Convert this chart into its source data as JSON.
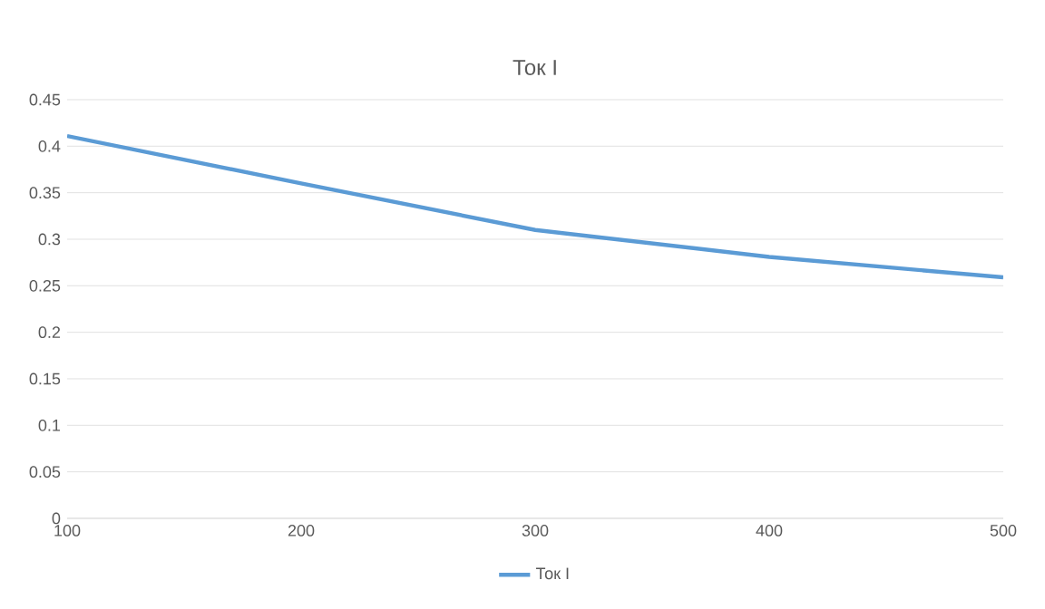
{
  "chart_data": {
    "type": "line",
    "title": "Ток I",
    "x": [
      100,
      200,
      300,
      400,
      500
    ],
    "series": [
      {
        "name": "Ток I",
        "color": "#5b9bd5",
        "values": [
          0.411,
          0.36,
          0.31,
          0.281,
          0.259
        ]
      }
    ],
    "xlim": [
      100,
      500
    ],
    "xticks": [
      100,
      200,
      300,
      400,
      500
    ],
    "ylim": [
      0,
      0.45
    ],
    "yticks": [
      0,
      0.05,
      0.1,
      0.15,
      0.2,
      0.25,
      0.3,
      0.35,
      0.4,
      0.45
    ],
    "grid": "y",
    "legend": "bottom",
    "marker": "none",
    "line_style": "solid"
  }
}
